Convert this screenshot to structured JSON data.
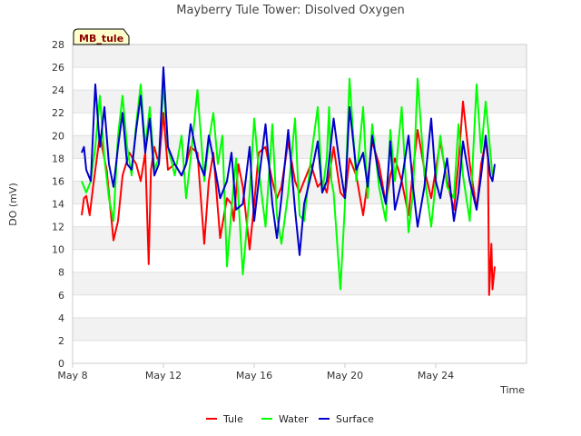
{
  "chart_data": {
    "type": "line",
    "title": "Mayberry Tule Tower: Disolved Oxygen",
    "xlabel": "Time",
    "ylabel": "DO (mV)",
    "badge": "MB_tule",
    "x_unit": "days since May 8",
    "xlim": [
      0,
      20
    ],
    "ylim": [
      0,
      28
    ],
    "yticks": [
      0,
      2,
      4,
      6,
      8,
      10,
      12,
      14,
      16,
      18,
      20,
      22,
      24,
      26,
      28
    ],
    "xticks": [
      {
        "value": 0,
        "label": "May 8"
      },
      {
        "value": 4,
        "label": "May 12"
      },
      {
        "value": 8,
        "label": "May 16"
      },
      {
        "value": 12,
        "label": "May 20"
      },
      {
        "value": 16,
        "label": "May 24"
      }
    ],
    "legend_position": "bottom-center",
    "series": [
      {
        "name": "Tule",
        "color": "#ff0000",
        "x": [
          0.4,
          0.5,
          0.6,
          0.75,
          0.9,
          1.0,
          1.2,
          1.5,
          1.8,
          2.0,
          2.2,
          2.5,
          2.8,
          3.0,
          3.2,
          3.35,
          3.45,
          3.6,
          3.8,
          4.0,
          4.2,
          4.5,
          4.8,
          5.0,
          5.2,
          5.5,
          5.8,
          6.0,
          6.2,
          6.5,
          6.8,
          7.0,
          7.1,
          7.3,
          7.5,
          7.8,
          8.0,
          8.2,
          8.5,
          8.8,
          9.0,
          9.2,
          9.5,
          9.8,
          10.0,
          10.2,
          10.5,
          10.8,
          11.0,
          11.2,
          11.5,
          11.8,
          12.0,
          12.2,
          12.5,
          12.8,
          13.0,
          13.2,
          13.5,
          13.8,
          14.0,
          14.2,
          14.5,
          14.8,
          15.0,
          15.2,
          15.5,
          15.8,
          16.0,
          16.2,
          16.5,
          16.8,
          17.0,
          17.2,
          17.5,
          17.8,
          18.0,
          18.2,
          18.3,
          18.35,
          18.45,
          18.5,
          18.6
        ],
        "y": [
          13.0,
          14.5,
          14.7,
          13.0,
          15.5,
          17.0,
          20.0,
          17.0,
          10.8,
          12.5,
          16.5,
          18.5,
          17.5,
          16.0,
          18.5,
          8.7,
          17.0,
          19.0,
          17.5,
          22.0,
          17.0,
          17.5,
          16.5,
          17.5,
          19.0,
          18.5,
          10.5,
          16.0,
          18.5,
          11.0,
          14.5,
          14.0,
          12.5,
          17.5,
          15.5,
          10.0,
          14.0,
          18.5,
          19.0,
          16.0,
          14.5,
          15.5,
          19.5,
          16.0,
          15.0,
          16.0,
          17.5,
          15.5,
          16.0,
          15.0,
          19.0,
          15.0,
          14.5,
          18.0,
          16.5,
          13.0,
          16.0,
          19.5,
          17.5,
          14.0,
          16.5,
          18.0,
          16.0,
          13.0,
          17.0,
          20.5,
          17.0,
          14.5,
          17.0,
          19.5,
          16.0,
          13.5,
          17.5,
          23.0,
          17.5,
          13.5,
          17.5,
          19.5,
          18.0,
          6.0,
          10.5,
          6.5,
          8.5
        ]
      },
      {
        "name": "Water",
        "color": "#00ff00",
        "x": [
          0.4,
          0.6,
          0.8,
          1.0,
          1.2,
          1.4,
          1.6,
          1.8,
          2.0,
          2.2,
          2.4,
          2.6,
          2.8,
          3.0,
          3.2,
          3.4,
          3.6,
          3.8,
          4.0,
          4.2,
          4.5,
          4.8,
          5.0,
          5.2,
          5.5,
          5.8,
          6.0,
          6.2,
          6.4,
          6.6,
          6.8,
          7.0,
          7.2,
          7.5,
          7.8,
          8.0,
          8.2,
          8.5,
          8.8,
          9.0,
          9.2,
          9.5,
          9.8,
          10.0,
          10.2,
          10.5,
          10.8,
          11.0,
          11.2,
          11.3,
          11.4,
          11.5,
          11.8,
          12.0,
          12.2,
          12.5,
          12.8,
          13.0,
          13.2,
          13.5,
          13.8,
          14.0,
          14.2,
          14.5,
          14.8,
          15.0,
          15.2,
          15.5,
          15.8,
          16.0,
          16.2,
          16.5,
          16.8,
          17.0,
          17.2,
          17.5,
          17.8,
          18.0,
          18.2,
          18.5
        ],
        "y": [
          16.0,
          15.0,
          16.0,
          19.0,
          23.5,
          18.0,
          14.5,
          12.5,
          20.0,
          23.5,
          19.0,
          16.5,
          21.0,
          24.5,
          19.0,
          22.5,
          17.0,
          18.0,
          24.5,
          19.0,
          16.5,
          20.0,
          14.5,
          18.0,
          24.0,
          16.0,
          19.5,
          22.0,
          17.5,
          20.0,
          8.5,
          13.5,
          18.0,
          7.8,
          15.0,
          21.5,
          17.0,
          12.0,
          21.0,
          13.0,
          10.5,
          15.0,
          21.5,
          13.0,
          12.5,
          18.0,
          22.5,
          15.0,
          18.0,
          22.5,
          16.0,
          15.0,
          6.5,
          14.0,
          25.0,
          16.0,
          22.5,
          14.5,
          21.0,
          15.5,
          12.5,
          20.5,
          16.0,
          22.5,
          11.5,
          15.0,
          25.0,
          16.5,
          12.0,
          16.0,
          20.0,
          15.5,
          14.5,
          21.0,
          16.5,
          12.5,
          24.5,
          18.5,
          23.0,
          16.5
        ]
      },
      {
        "name": "Surface",
        "color": "#0000cc",
        "x": [
          0.4,
          0.5,
          0.6,
          0.8,
          1.0,
          1.2,
          1.4,
          1.6,
          1.8,
          2.0,
          2.2,
          2.4,
          2.6,
          2.8,
          3.0,
          3.2,
          3.4,
          3.6,
          3.8,
          4.0,
          4.2,
          4.5,
          4.8,
          5.0,
          5.2,
          5.5,
          5.8,
          6.0,
          6.2,
          6.5,
          6.8,
          7.0,
          7.2,
          7.5,
          7.8,
          8.0,
          8.2,
          8.5,
          8.8,
          9.0,
          9.2,
          9.5,
          9.8,
          10.0,
          10.2,
          10.5,
          10.8,
          11.0,
          11.2,
          11.5,
          11.8,
          12.0,
          12.2,
          12.5,
          12.8,
          13.0,
          13.2,
          13.5,
          13.8,
          14.0,
          14.2,
          14.5,
          14.8,
          15.0,
          15.2,
          15.5,
          15.8,
          16.0,
          16.2,
          16.5,
          16.8,
          17.0,
          17.2,
          17.5,
          17.8,
          18.0,
          18.2,
          18.4,
          18.5,
          18.6
        ],
        "y": [
          18.5,
          19.0,
          17.0,
          16.0,
          24.5,
          19.0,
          22.5,
          17.5,
          15.5,
          19.0,
          22.0,
          17.5,
          17.0,
          20.5,
          23.5,
          18.5,
          21.5,
          16.5,
          17.5,
          26.0,
          19.0,
          17.5,
          16.5,
          17.5,
          21.0,
          18.0,
          16.5,
          20.0,
          18.0,
          14.5,
          16.0,
          18.5,
          13.5,
          14.0,
          19.0,
          12.5,
          16.0,
          21.0,
          14.0,
          11.0,
          14.5,
          20.5,
          13.5,
          9.5,
          14.0,
          16.5,
          19.5,
          15.0,
          16.0,
          21.5,
          17.0,
          14.5,
          22.5,
          17.0,
          18.5,
          15.5,
          20.0,
          16.5,
          14.0,
          19.5,
          13.5,
          16.0,
          20.0,
          15.5,
          12.0,
          15.5,
          21.5,
          16.0,
          14.5,
          18.0,
          12.5,
          15.0,
          19.5,
          16.0,
          13.5,
          16.5,
          20.0,
          16.5,
          16.0,
          17.5
        ]
      }
    ]
  }
}
